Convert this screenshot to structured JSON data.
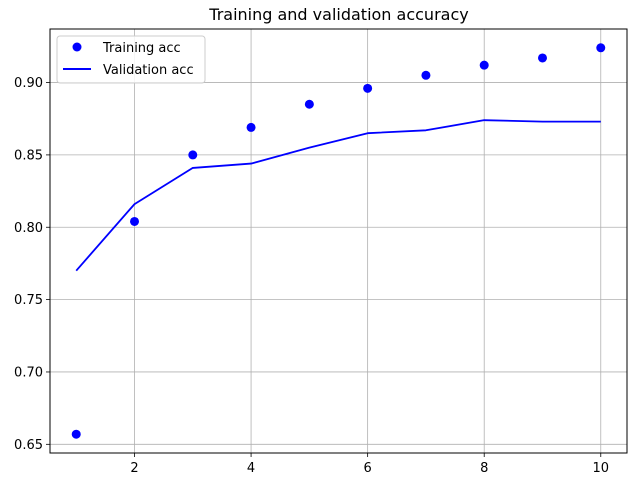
{
  "chart_data": {
    "type": "line",
    "title": "Training and validation accuracy",
    "xlabel": "",
    "ylabel": "",
    "xlim": [
      0.55,
      10.45
    ],
    "ylim": [
      0.644,
      0.937
    ],
    "grid": true,
    "legend_position": "upper-left",
    "x_ticks": [
      2,
      4,
      6,
      8,
      10
    ],
    "x_tick_labels": [
      "2",
      "4",
      "6",
      "8",
      "10"
    ],
    "y_ticks": [
      0.65,
      0.7,
      0.75,
      0.8,
      0.85,
      0.9
    ],
    "y_tick_labels": [
      "0.65",
      "0.70",
      "0.75",
      "0.80",
      "0.85",
      "0.90"
    ],
    "series": [
      {
        "name": "Training acc",
        "style": "points",
        "color": "#0000ff",
        "x": [
          1,
          2,
          3,
          4,
          5,
          6,
          7,
          8,
          9,
          10
        ],
        "values": [
          0.657,
          0.804,
          0.85,
          0.869,
          0.885,
          0.896,
          0.905,
          0.912,
          0.917,
          0.924
        ]
      },
      {
        "name": "Validation acc",
        "style": "line",
        "color": "#0000ff",
        "x": [
          1,
          2,
          3,
          4,
          5,
          6,
          7,
          8,
          9,
          10
        ],
        "values": [
          0.77,
          0.816,
          0.841,
          0.844,
          0.855,
          0.865,
          0.867,
          0.874,
          0.873,
          0.873
        ]
      }
    ]
  }
}
